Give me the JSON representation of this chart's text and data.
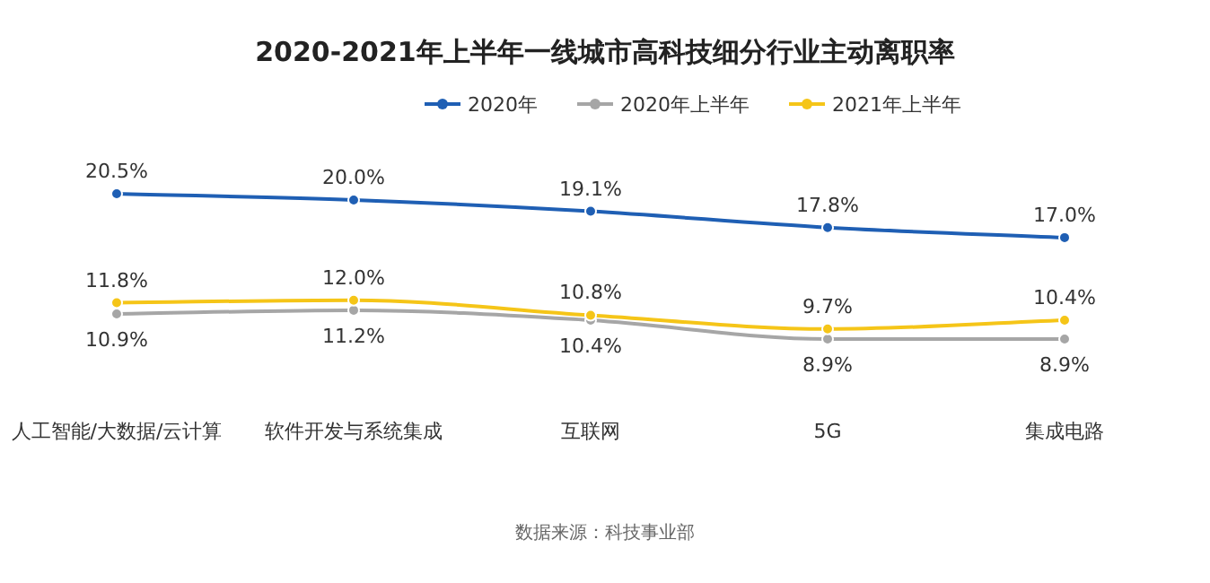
{
  "chart_data": {
    "type": "line",
    "title": "2020-2021年上半年一线城市高科技细分行业主动离职率",
    "categories": [
      "人工智能/大数据/云计算",
      "软件开发与系统集成",
      "互联网",
      "5G",
      "集成电路"
    ],
    "series": [
      {
        "name": "2020年",
        "color": "#1f5fb4",
        "values": [
          20.5,
          20.0,
          19.1,
          17.8,
          17.0
        ],
        "value_labels": [
          "20.5%",
          "20.0%",
          "19.1%",
          "17.8%",
          "17.0%"
        ]
      },
      {
        "name": "2020年上半年",
        "color": "#a6a6a6",
        "values": [
          10.9,
          11.2,
          10.4,
          8.9,
          8.9
        ],
        "value_labels": [
          "10.9%",
          "11.2%",
          "10.4%",
          "8.9%",
          "8.9%"
        ]
      },
      {
        "name": "2021年上半年",
        "color": "#f5c518",
        "values": [
          11.8,
          12.0,
          10.8,
          9.7,
          10.4
        ],
        "value_labels": [
          "11.8%",
          "12.0%",
          "10.8%",
          "9.7%",
          "10.4%"
        ]
      }
    ],
    "legend": "top",
    "marker": "circle",
    "annotations": [
      "数据来源：科技事业部"
    ]
  }
}
